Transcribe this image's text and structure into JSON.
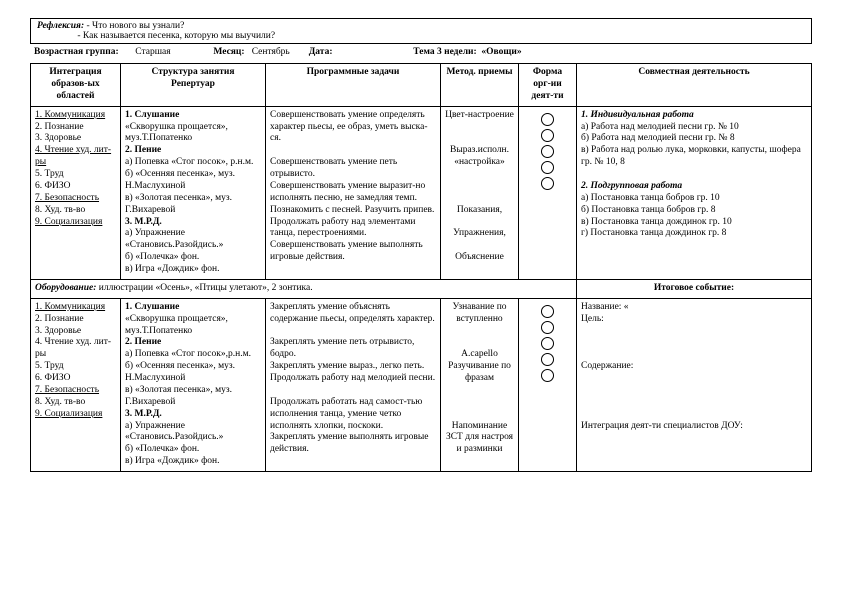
{
  "reflex": {
    "label": "Рефлексия:",
    "q1": "- Что нового вы узнали?",
    "q2": "- Как называется песенка, которую мы выучили?"
  },
  "info": {
    "group_lbl": "Возрастная группа:",
    "group_val": "Старшая",
    "month_lbl": "Месяц:",
    "month_val": "Сентябрь",
    "date_lbl": "Дата:",
    "theme_lbl": "Тема 3 недели:",
    "theme_val": "«Овощи»"
  },
  "headers": {
    "c1": "Интеграция образов-ых областей",
    "c2a": "Структура занятия",
    "c2b": "Репертуар",
    "c3": "Программные задачи",
    "c4": "Метод. приемы",
    "c5a": "Форма",
    "c5b": "орг-ии",
    "c5c": "деят-ти",
    "c6": "Совместная деятельность"
  },
  "row1": {
    "areas": [
      {
        "u": true,
        "t": "1. Коммуникация"
      },
      {
        "u": false,
        "t": "2. Познание"
      },
      {
        "u": false,
        "t": "3. Здоровье"
      },
      {
        "u": true,
        "t": "4. Чтение худ. лит-ры"
      },
      {
        "u": false,
        "t": "5. Труд"
      },
      {
        "u": false,
        "t": "6. ФИЗО"
      },
      {
        "u": true,
        "t": "7. Безопасность"
      },
      {
        "u": false,
        "t": "8. Худ. тв-во"
      },
      {
        "u": true,
        "t": "9. Социализация"
      }
    ],
    "rep": "1. Слушание\n«Скворушка прощается», муз.Т.Попатенко\n2. Пение\nа) Попевка «Стог посок», р.н.м.\nб) «Осенняя песенка», муз. Н.Маслухиной\nв) «Золотая песенка», муз. Г.Вихаревой\n3. М.Р.Д.\nа) Упражнение «Становись.Разойдись.»\nб) «Полечка» фон.\nв) Игра «Дождик» фон.",
    "tasks": "Совершенствовать умение определять характер пьесы, ее образ, уметь выска-ся.\n\nСовершенствовать умение петь отрывисто.\n Совершенствовать умение выразит-но исполнять песню, не замедляя темп.\nПознакомить с песней. Разучить припев.\nПродолжать работу над элементами танца, перестроениями.\n Совершенствовать умение выполнять игровые действия.",
    "meth": "Цвет-настроение\n\n\nВыраз.исполн. «настройка»\n\n\n\nПоказания,\n\nУпражнения,\n\nОбъяснение",
    "together_h1": "1. Индивидуальная работа",
    "together_a": "а) Работа над мелодией песни гр. № 10\nб) Работа над мелодией песни гр. № 8\nв) Работа над ролью лука, морковки, капусты, шофера гр. № 10, 8",
    "together_h2": "2. Подгрупповая работа",
    "together_b": "а) Постановка танца бобров гр. 10\nб) Постановка танца бобров гр. 8\nв) Постановка танца дождинок гр. 10\nг) Постановка танца дождинок гр. 8"
  },
  "equip": {
    "lbl": "Оборудование:",
    "val": "иллюстрации «Осень», «Птицы улетают», 2 зонтика.",
    "right": "Итоговое событие:"
  },
  "row2": {
    "areas": [
      {
        "u": true,
        "t": "1. Коммуникация"
      },
      {
        "u": false,
        "t": "2. Познание"
      },
      {
        "u": false,
        "t": "3. Здоровье"
      },
      {
        "u": false,
        "t": "4. Чтение худ. лит-ры"
      },
      {
        "u": false,
        "t": "5. Труд"
      },
      {
        "u": false,
        "t": "6. ФИЗО"
      },
      {
        "u": true,
        "t": "7. Безопасность"
      },
      {
        "u": false,
        "t": "8. Худ. тв-во"
      },
      {
        "u": true,
        "t": "9. Социализация"
      }
    ],
    "rep": "1. Слушание\n«Скворушка прощается», муз.Т.Попатенко\n2. Пение\nа) Попевка «Стог посок»,р.н.м.\nб) «Осенняя песенка», муз. Н.Маслухиной\nв) «Золотая песенка», муз. Г.Вихаревой\n3. М.Р.Д.\nа) Упражнение «Становись.Разойдись.»\nб) «Полечка» фон.\nв) Игра «Дождик» фон.",
    "tasks": "Закреплять умение объяснять содержание пьесы, определять характер.\n\nЗакреплять умение петь отрывисто, бодро.\n Закреплять умение выраз., легко петь.\nПродолжать работу над мелодией песни.\n\nПродолжать работать над самост-тью исполнения танца, умение четко исполнять хлопки, поскоки.\nЗакреплять умение выполнять игровые действия.",
    "meth": "Узнавание по вступленно\n\n\nA.capello\nРазучивание по фразам\n\n\n\nНапоминание\nЗСТ для настроя и разминки",
    "together": "Название: «\nЦель:\n\n\n\nСодержание:\n\n\n\n\nИнтеграция деят-ти специалистов ДОУ:"
  }
}
